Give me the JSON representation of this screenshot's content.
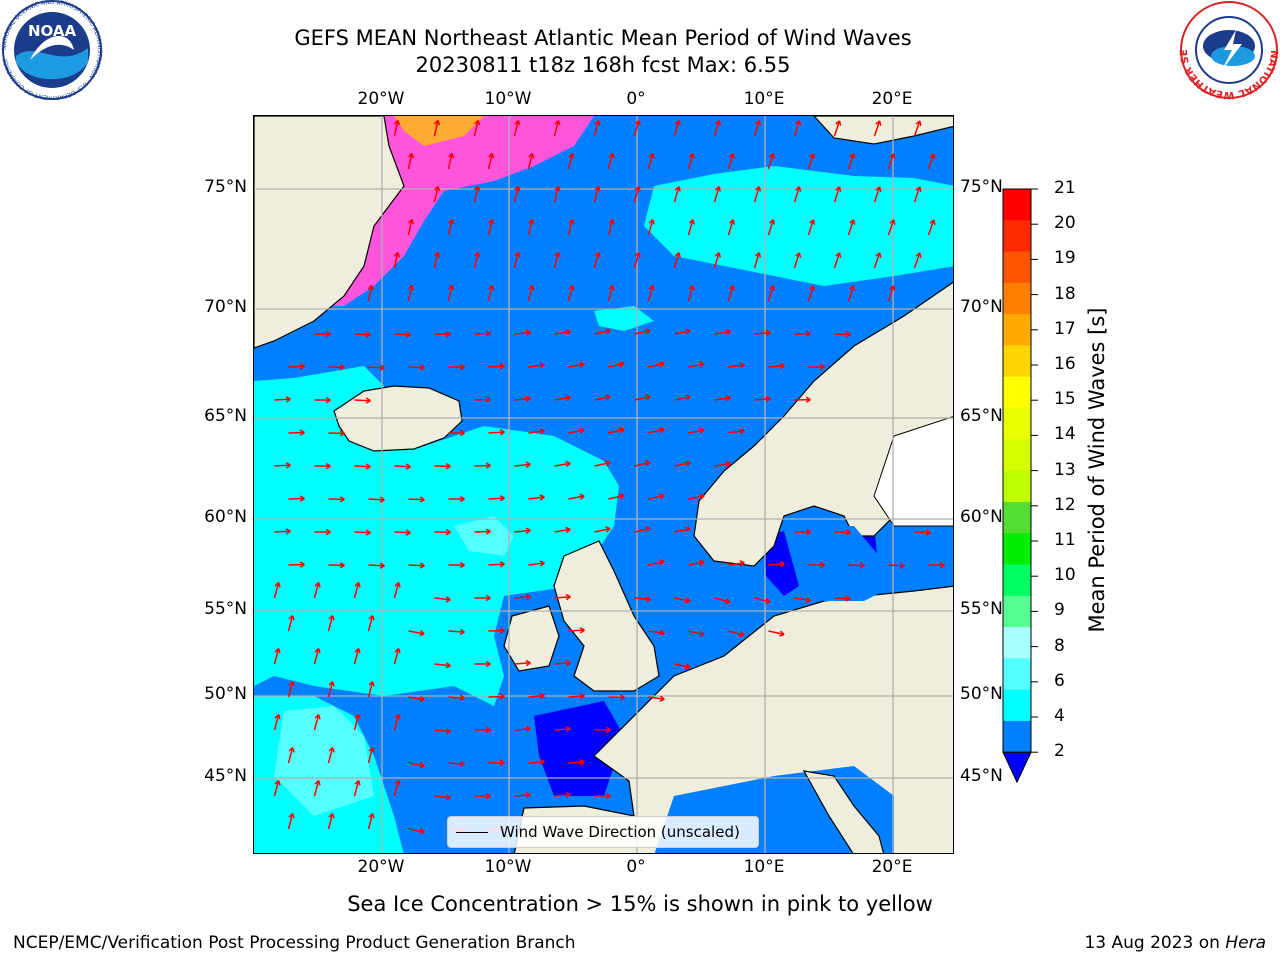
{
  "title_line1": "GEFS MEAN Northeast Atlantic Mean Period of Wind Waves",
  "title_line2": "20230811 t18z 168h fcst   Max: 6.55",
  "lon_labels": [
    "20°W",
    "10°W",
    "0°",
    "10°E",
    "20°E"
  ],
  "lat_labels": [
    "75°N",
    "70°N",
    "65°N",
    "60°N",
    "55°N",
    "50°N",
    "45°N"
  ],
  "colorbar": {
    "label": "Mean Period of Wind Waves [s]",
    "ticks": [
      "21",
      "20",
      "19",
      "18",
      "17",
      "16",
      "15",
      "14",
      "13",
      "12",
      "11",
      "10",
      "9",
      "8",
      "6",
      "4",
      "2"
    ],
    "colors": [
      "#ff0000",
      "#ff2a00",
      "#ff5500",
      "#ff8000",
      "#ffaa00",
      "#ffd400",
      "#ffff00",
      "#eaff00",
      "#d5ff00",
      "#bfff00",
      "#55dd33",
      "#00ee00",
      "#00ff60",
      "#55ff90",
      "#aaffff",
      "#55ffff",
      "#00ffff",
      "#0080ff"
    ],
    "extend_color": "#0000ff"
  },
  "legend_label": "Wind Wave Direction (unscaled)",
  "sea_ice_note": "Sea Ice Concentration > 15% is shown in pink to yellow",
  "footer_left": "NCEP/EMC/Verification Post Processing Product Generation Branch",
  "footer_date": "13 Aug 2023 on",
  "footer_host": "Hera",
  "logos": {
    "noaa_text": "NOAA",
    "noaa_ring": "NATIONAL OCEANIC AND ATMOSPHERIC ADMINISTRATION · U.S. DEPARTMENT OF COMMERCE",
    "nws_ring": "NATIONAL WEATHER SERVICE"
  },
  "colors": {
    "ocean": "#0080ff",
    "ocean_light": "#00ffff",
    "ocean_mid": "#55ffff",
    "ocean_deep": "#0000ff",
    "land": "#efeedd",
    "arrow": "#ff0000",
    "grid": "#b0b0b0",
    "ice_pink": "#ff55dd",
    "ice_orange": "#ffaa33"
  }
}
